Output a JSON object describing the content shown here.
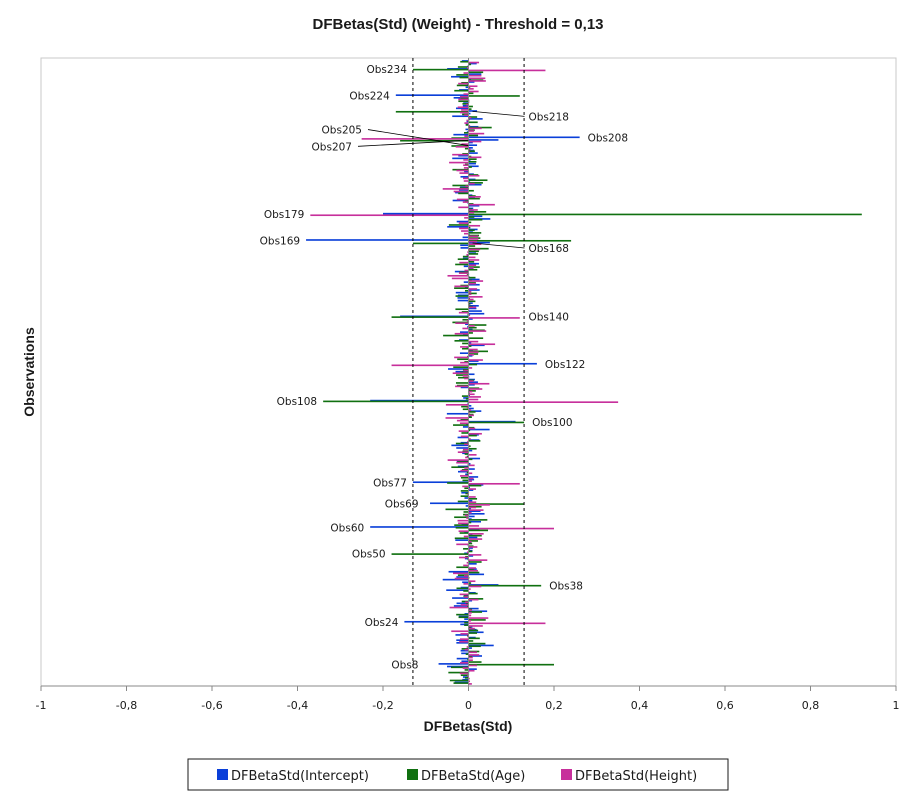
{
  "chart_data": {
    "type": "bar",
    "orientation": "horizontal",
    "title": "DFBetas(Std) (Weight) - Threshold = 0,13",
    "xlabel": "DFBetas(Std)",
    "ylabel": "Observations",
    "xlim": [
      -1,
      1
    ],
    "x_ticks": [
      -1,
      -0.8,
      -0.6,
      -0.4,
      -0.2,
      0,
      0.2,
      0.4,
      0.6,
      0.8,
      1
    ],
    "x_tick_labels": [
      "-1",
      "-0,8",
      "-0,6",
      "-0,4",
      "-0,2",
      "0",
      "0,2",
      "0,4",
      "0,6",
      "0,8",
      "1"
    ],
    "threshold": 0.13,
    "threshold_lines": [
      -0.13,
      0.13
    ],
    "n_observations": 237,
    "legend_position": "bottom",
    "series": [
      {
        "name": "DFBetaStd(Intercept)",
        "color": "#0a3fd9",
        "key": "intercept"
      },
      {
        "name": "DFBetaStd(Age)",
        "color": "#107010",
        "key": "age"
      },
      {
        "name": "DFBetaStd(Height)",
        "color": "#c72f9b",
        "key": "height"
      }
    ],
    "generator_seed": 20240517,
    "labeled_observations": [
      {
        "label": "Obs234",
        "obs": 234,
        "intercept": -0.05,
        "age": -0.13,
        "height": 0.18,
        "label_side": "left"
      },
      {
        "label": "Obs224",
        "obs": 224,
        "intercept": -0.17,
        "age": 0.12,
        "height": -0.02,
        "label_side": "left"
      },
      {
        "label": "Obs218",
        "obs": 218,
        "intercept": 0.02,
        "age": -0.17,
        "height": -0.02,
        "label_side": "right"
      },
      {
        "label": "Obs208",
        "obs": 208,
        "intercept": 0.26,
        "age": -0.04,
        "height": -0.25,
        "label_side": "right"
      },
      {
        "label": "Obs205",
        "obs": 205,
        "intercept": 0.02,
        "age": -0.04,
        "height": -0.03,
        "label_side": "left"
      },
      {
        "label": "Obs207",
        "obs": 207,
        "intercept": 0.07,
        "age": -0.16,
        "height": 0.03,
        "label_side": "left"
      },
      {
        "label": "Obs179",
        "obs": 179,
        "intercept": -0.2,
        "age": 0.92,
        "height": -0.37,
        "label_side": "left"
      },
      {
        "label": "Obs169",
        "obs": 169,
        "intercept": -0.38,
        "age": 0.24,
        "height": 0.02,
        "label_side": "left"
      },
      {
        "label": "Obs168",
        "obs": 168,
        "intercept": 0.05,
        "age": -0.13,
        "height": 0.03,
        "label_side": "right"
      },
      {
        "label": "Obs140",
        "obs": 140,
        "intercept": -0.16,
        "age": -0.18,
        "height": 0.12,
        "label_side": "right"
      },
      {
        "label": "Obs122",
        "obs": 122,
        "intercept": 0.16,
        "age": 0.02,
        "height": -0.18,
        "label_side": "right"
      },
      {
        "label": "Obs108",
        "obs": 108,
        "intercept": -0.23,
        "age": -0.34,
        "height": 0.35,
        "label_side": "left"
      },
      {
        "label": "Obs100",
        "obs": 100,
        "intercept": 0.11,
        "age": 0.13,
        "height": -0.02,
        "label_side": "right"
      },
      {
        "label": "Obs77",
        "obs": 77,
        "intercept": -0.13,
        "age": -0.05,
        "height": 0.12,
        "label_side": "left"
      },
      {
        "label": "Obs69",
        "obs": 69,
        "intercept": -0.09,
        "age": 0.13,
        "height": 0.05,
        "label_side": "left"
      },
      {
        "label": "Obs60",
        "obs": 60,
        "intercept": -0.23,
        "age": -0.03,
        "height": 0.2,
        "label_side": "left"
      },
      {
        "label": "Obs50",
        "obs": 50,
        "intercept": -0.01,
        "age": -0.18,
        "height": 0.03,
        "label_side": "left"
      },
      {
        "label": "Obs38",
        "obs": 38,
        "intercept": 0.07,
        "age": 0.17,
        "height": 0.03,
        "label_side": "right"
      },
      {
        "label": "Obs24",
        "obs": 24,
        "intercept": -0.15,
        "age": -0.01,
        "height": 0.18,
        "label_side": "left"
      },
      {
        "label": "Obs8",
        "obs": 8,
        "intercept": -0.07,
        "age": 0.2,
        "height": 0.02,
        "label_side": "left"
      }
    ]
  }
}
